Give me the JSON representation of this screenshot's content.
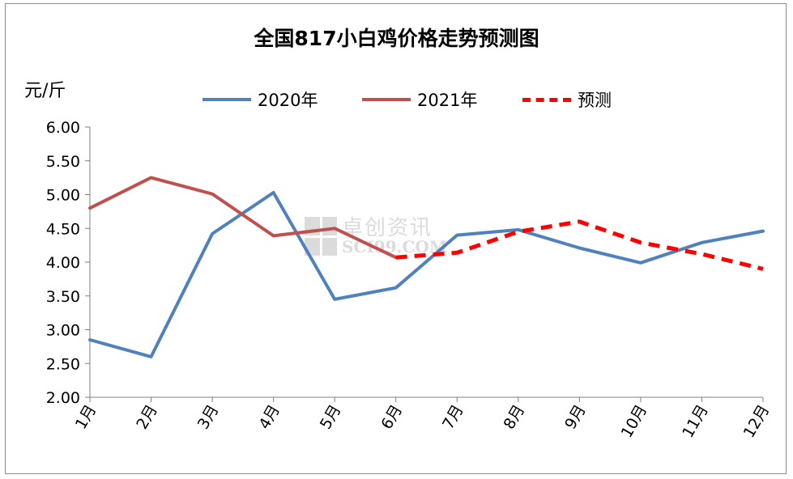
{
  "chart_data": {
    "type": "line",
    "title": "全国817小白鸡价格走势预测图",
    "ylabel": "元/斤",
    "xlabel": "",
    "categories": [
      "1月",
      "2月",
      "3月",
      "4月",
      "5月",
      "6月",
      "7月",
      "8月",
      "9月",
      "10月",
      "11月",
      "12月"
    ],
    "ylim": [
      2.0,
      6.0
    ],
    "yticks": [
      "2.00",
      "2.50",
      "3.00",
      "3.50",
      "4.00",
      "4.50",
      "5.00",
      "5.50",
      "6.00"
    ],
    "grid": false,
    "legend_position": "top",
    "series": [
      {
        "name": "2020年",
        "color": "#4f81bd",
        "style": "solid",
        "values": [
          2.85,
          2.6,
          4.42,
          5.03,
          3.45,
          3.62,
          4.4,
          4.48,
          4.21,
          3.99,
          4.29,
          4.46
        ]
      },
      {
        "name": "2021年",
        "color": "#c0504d",
        "style": "solid",
        "values": [
          4.8,
          5.25,
          5.01,
          4.39,
          4.5,
          4.07,
          null,
          null,
          null,
          null,
          null,
          null
        ]
      },
      {
        "name": "预测",
        "color": "#ff0000",
        "style": "dashed",
        "values": [
          null,
          null,
          null,
          null,
          null,
          4.07,
          4.14,
          4.45,
          4.6,
          4.29,
          4.12,
          3.9
        ]
      }
    ]
  },
  "watermark": {
    "cn": "卓创资讯",
    "en": "SCI99.COM"
  }
}
